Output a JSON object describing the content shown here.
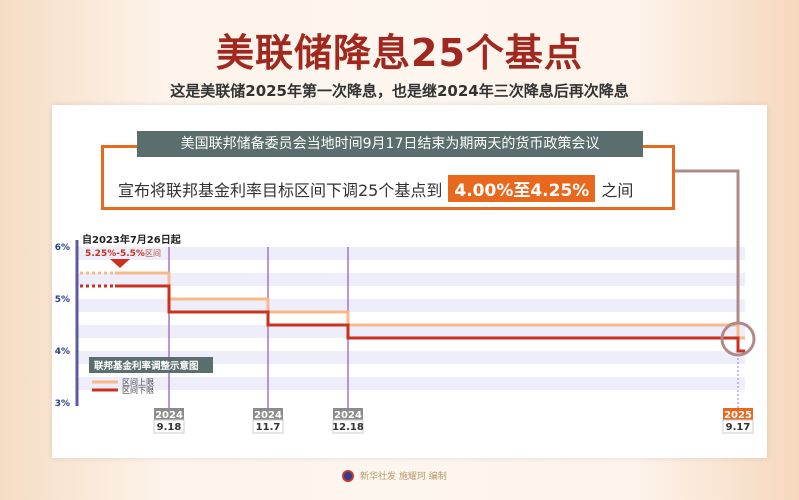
{
  "title": "美联储降息25个基点",
  "subtitle": "这是美联储2025年第一次降息，也是继2024年三次降息后再次降息",
  "callout": {
    "header": "美国联邦储备委员会当地时间9月17日结束为期两天的货币政策会议",
    "text_before": "宣布将联邦基金利率目标区间下调25个基点到",
    "highlight": "4.00%至4.25%",
    "text_after": "之间"
  },
  "colors": {
    "accent": "#e8681e",
    "upper": "#f8b98a",
    "lower": "#c8321e",
    "vline": "#a374d0",
    "axis": "#5a5aa8"
  },
  "chart_data": {
    "type": "line",
    "title": "联邦基金利率调整示意图",
    "start_note": "自2023年7月26日起",
    "start_range": "5.25%-5.5%",
    "start_range_suffix": "区间",
    "ylim": [
      3,
      6
    ],
    "yticks": [
      "6%",
      "5%",
      "4%",
      "3%"
    ],
    "xticks": [
      {
        "year": "2024",
        "date": "9.18"
      },
      {
        "year": "2024",
        "date": "11.7"
      },
      {
        "year": "2024",
        "date": "12.18"
      },
      {
        "year": "2025",
        "date": "9.17"
      }
    ],
    "series": [
      {
        "name": "区间上限",
        "values": [
          5.5,
          5.0,
          4.75,
          4.5,
          4.25
        ]
      },
      {
        "name": "区间下限",
        "values": [
          5.25,
          4.75,
          4.5,
          4.25,
          4.0
        ]
      }
    ]
  },
  "footer": "新华社发 施耀珂 编制"
}
